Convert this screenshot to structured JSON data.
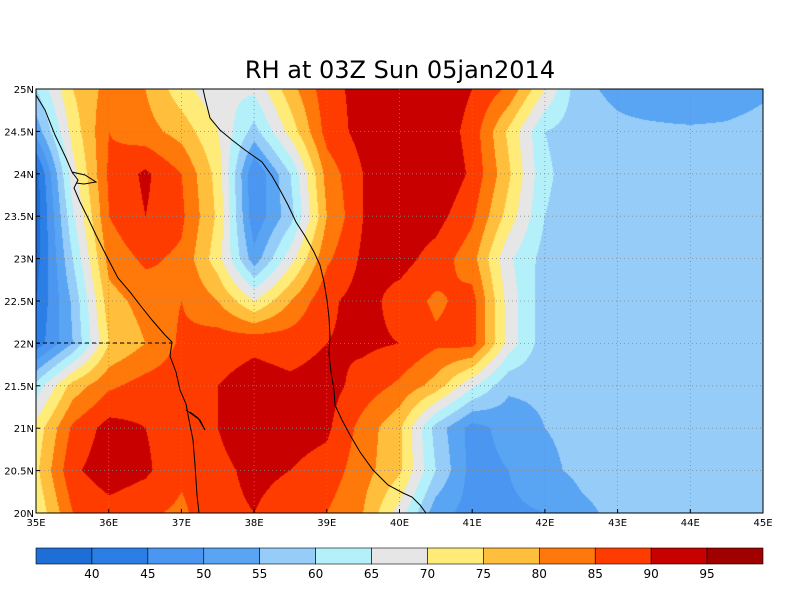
{
  "chart_data": {
    "type": "heatmap",
    "title": "RH at 03Z Sun 05jan2014",
    "x_ticks": [
      "35E",
      "36E",
      "37E",
      "38E",
      "39E",
      "40E",
      "41E",
      "42E",
      "43E",
      "44E",
      "45E"
    ],
    "y_ticks": [
      "20N",
      "20.5N",
      "21N",
      "21.5N",
      "22N",
      "22.5N",
      "23N",
      "23.5N",
      "24N",
      "24.5N",
      "25N"
    ],
    "xlim": [
      35,
      45
    ],
    "ylim": [
      20,
      25
    ],
    "grid": true,
    "colorbar_labels": [
      "40",
      "45",
      "50",
      "55",
      "60",
      "65",
      "70",
      "75",
      "80",
      "85",
      "90",
      "95"
    ],
    "levels": [
      35,
      40,
      45,
      50,
      55,
      60,
      65,
      70,
      75,
      80,
      85,
      90,
      95,
      100
    ],
    "colors": [
      "#1e6ed8",
      "#2a7ee6",
      "#4a96f0",
      "#5aa4f4",
      "#96cdf8",
      "#b4f0fa",
      "#e6e6e6",
      "#ffeb78",
      "#ffbe3c",
      "#ff780a",
      "#ff3c00",
      "#c80000",
      "#a00000"
    ],
    "grid_lon": [
      35,
      35.5,
      36,
      36.5,
      37,
      37.5,
      38,
      38.5,
      39,
      39.5,
      40,
      40.5,
      41,
      41.5,
      42,
      42.5,
      43,
      43.5,
      44,
      44.5,
      45
    ],
    "grid_lat": [
      20,
      20.5,
      21,
      21.5,
      22,
      22.5,
      23,
      23.5,
      24,
      24.5,
      25
    ],
    "rh_rows_north_to_south": [
      [
        60,
        75,
        82,
        80,
        72,
        66,
        66,
        78,
        88,
        92,
        93,
        94,
        90,
        84,
        70,
        56,
        54,
        52,
        50,
        52,
        54
      ],
      [
        52,
        72,
        85,
        82,
        78,
        70,
        58,
        72,
        87,
        92,
        94,
        94,
        88,
        74,
        60,
        57,
        56,
        56,
        56,
        56,
        57
      ],
      [
        38,
        68,
        86,
        91,
        85,
        73,
        45,
        60,
        82,
        90,
        94,
        95,
        89,
        76,
        61,
        57,
        57,
        56,
        56,
        57,
        57
      ],
      [
        37,
        64,
        85,
        90,
        86,
        74,
        46,
        58,
        80,
        90,
        93,
        92,
        86,
        73,
        60,
        57,
        57,
        57,
        56,
        57,
        57
      ],
      [
        38,
        60,
        82,
        86,
        84,
        72,
        52,
        68,
        84,
        91,
        92,
        88,
        82,
        66,
        58,
        56,
        57,
        57,
        57,
        56,
        57
      ],
      [
        40,
        56,
        78,
        82,
        85,
        80,
        70,
        80,
        89,
        92,
        88,
        84,
        87,
        68,
        57,
        56,
        56,
        56,
        57,
        56,
        57
      ],
      [
        42,
        55,
        75,
        80,
        86,
        88,
        89,
        88,
        90,
        91,
        90,
        86,
        87,
        68,
        57,
        56,
        57,
        60,
        57,
        56,
        57
      ],
      [
        62,
        77,
        84,
        87,
        88,
        90,
        92,
        91,
        92,
        88,
        84,
        78,
        66,
        56,
        56,
        57,
        57,
        57,
        57,
        56,
        57
      ],
      [
        72,
        86,
        92,
        90,
        87,
        90,
        93,
        92,
        91,
        83,
        76,
        58,
        48,
        52,
        55,
        56,
        57,
        57,
        57,
        56,
        57
      ],
      [
        74,
        89,
        93,
        91,
        86,
        89,
        91,
        90,
        88,
        82,
        76,
        60,
        48,
        50,
        54,
        56,
        57,
        57,
        57,
        57,
        57
      ],
      [
        71,
        85,
        88,
        86,
        84,
        89,
        90,
        88,
        85,
        80,
        68,
        52,
        48,
        49,
        50,
        54,
        56,
        57,
        57,
        57,
        57
      ]
    ]
  }
}
